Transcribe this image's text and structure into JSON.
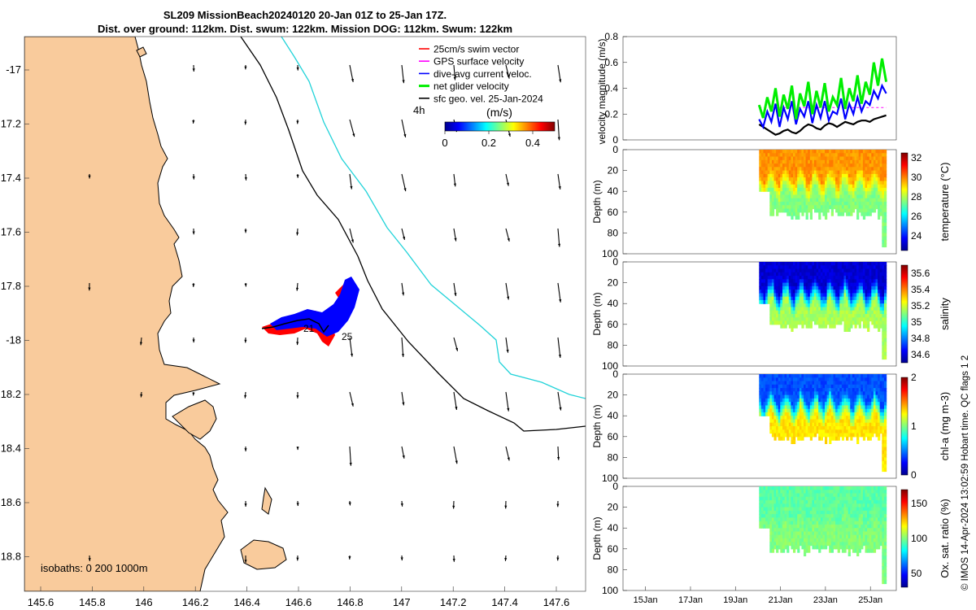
{
  "title": {
    "line1": "SL209 MissionBeach20240120 20-Jan 01Z to 25-Jan 17Z.",
    "line2": "Dist. over ground: 112km. Dist. swum: 122km. Mission DOG: 112km. Swum: 122km"
  },
  "credit": "© IMOS 14-Apr-2024 13:02:59 Hobart time. QC flags 1  2",
  "colors": {
    "land": "#f9cb9c",
    "swim_vector": "#ff0000",
    "gps_velocity": "#ff00ff",
    "dive_avg": "#0000ff",
    "net_glider": "#00ee00",
    "sfc_geo": "#000000",
    "isobath_200": "#000000",
    "isobath_1000": "#22d3d9"
  },
  "map": {
    "lon_ticks": [
      "145.6",
      "145.8",
      "146",
      "146.2",
      "146.4",
      "146.6",
      "146.8",
      "147",
      "147.2",
      "147.4",
      "147.6"
    ],
    "lat_ticks": [
      "-17",
      "17.2",
      "17.4",
      "17.6",
      "17.8",
      "-18",
      "18.2",
      "18.4",
      "18.6",
      "18.8"
    ],
    "isobaths_label": "isobaths: 0   200  1000m",
    "track_labels": {
      "start": "21",
      "end": "25"
    },
    "timestep_label": "4h",
    "legend": [
      {
        "label": "25cm/s swim vector",
        "color": "#ff0000"
      },
      {
        "label": "GPS surface velocity",
        "color": "#ff00ff"
      },
      {
        "label": "dive-avg current veloc.",
        "color": "#0000ff"
      },
      {
        "label": "net glider velocity",
        "color": "#00ee00"
      },
      {
        "label": "sfc geo. vel. 25-Jan-2024",
        "color": "#000000"
      }
    ],
    "colorbar": {
      "unit": "(m/s)",
      "ticks": [
        "0",
        "0.2",
        "0.4"
      ],
      "range": [
        0,
        0.5
      ]
    }
  },
  "chart_data": [
    {
      "type": "line",
      "ylabel": "velocity magnitude (m/s)",
      "ylim": [
        0,
        0.8
      ],
      "yticks": [
        "0",
        "0.2",
        "0.4",
        "0.6",
        "0.8"
      ],
      "x_start": "20-Jan",
      "series": [
        {
          "name": "net glider velocity",
          "color": "#00ee00",
          "values": [
            0.27,
            0.17,
            0.33,
            0.22,
            0.4,
            0.18,
            0.35,
            0.24,
            0.42,
            0.16,
            0.36,
            0.26,
            0.45,
            0.2,
            0.38,
            0.25,
            0.44,
            0.22,
            0.33,
            0.27,
            0.48,
            0.24,
            0.4,
            0.3,
            0.5,
            0.28,
            0.45,
            0.35,
            0.6,
            0.42,
            0.63,
            0.45
          ]
        },
        {
          "name": "dive-avg current veloc.",
          "color": "#0000ff",
          "values": [
            0.16,
            0.1,
            0.22,
            0.14,
            0.28,
            0.1,
            0.25,
            0.16,
            0.3,
            0.12,
            0.24,
            0.18,
            0.3,
            0.13,
            0.27,
            0.17,
            0.3,
            0.15,
            0.22,
            0.2,
            0.32,
            0.16,
            0.28,
            0.2,
            0.33,
            0.22,
            0.3,
            0.27,
            0.38,
            0.32,
            0.42,
            0.36
          ]
        },
        {
          "name": "sfc geo. vel.",
          "color": "#000000",
          "values": [
            0.12,
            0.1,
            0.08,
            0.06,
            0.04,
            0.05,
            0.07,
            0.08,
            0.06,
            0.05,
            0.07,
            0.1,
            0.12,
            0.11,
            0.09,
            0.08,
            0.11,
            0.13,
            0.12,
            0.1,
            0.12,
            0.14,
            0.13,
            0.12,
            0.14,
            0.15,
            0.15,
            0.14,
            0.16,
            0.17,
            0.18,
            0.19
          ]
        },
        {
          "name": "GPS surface velocity",
          "color": "#ff00ff",
          "values": [
            0.25,
            0.25,
            0.25,
            0.25,
            0.25,
            0.25,
            0.25,
            0.25,
            0.25,
            0.25,
            0.25,
            0.25,
            0.25,
            0.25,
            0.25,
            0.25,
            0.25,
            0.25,
            0.25,
            0.25,
            0.25,
            0.25,
            0.25,
            0.25,
            0.25,
            0.25,
            0.25,
            0.25,
            0.25,
            0.25,
            0.25,
            0.25
          ]
        }
      ]
    },
    {
      "type": "heatmap",
      "ylabel": "Depth (m)",
      "yticks": [
        "0",
        "20",
        "40",
        "60",
        "80",
        "100"
      ],
      "ylim": [
        100,
        0
      ],
      "colorbar_label": "temperature (°C)",
      "colorbar_ticks": [
        "24",
        "26",
        "28",
        "30",
        "32"
      ],
      "range": [
        22.5,
        32.5
      ],
      "upper_value": 29.8,
      "lower_value": 27.5
    },
    {
      "type": "heatmap",
      "ylabel": "Depth (m)",
      "yticks": [
        "0",
        "20",
        "40",
        "60",
        "80",
        "100"
      ],
      "ylim": [
        100,
        0
      ],
      "colorbar_label": "salinity",
      "colorbar_ticks": [
        "34.6",
        "34.8",
        "35",
        "35.2",
        "35.4",
        "35.6"
      ],
      "range": [
        34.5,
        35.7
      ],
      "upper_value": 34.6,
      "lower_value": 35.15
    },
    {
      "type": "heatmap",
      "ylabel": "Depth (m)",
      "yticks": [
        "0",
        "20",
        "40",
        "60",
        "80",
        "100"
      ],
      "ylim": [
        100,
        0
      ],
      "colorbar_label": "chl-a (mg m-3)",
      "colorbar_ticks": [
        "0",
        "1",
        "2"
      ],
      "range": [
        0,
        2
      ],
      "upper_value": 0.4,
      "lower_value": 1.3
    },
    {
      "type": "heatmap",
      "ylabel": "Depth (m)",
      "yticks": [
        "0",
        "20",
        "40",
        "60",
        "80",
        "100"
      ],
      "ylim": [
        100,
        0
      ],
      "colorbar_label": "Ox. sat. ratio (%)",
      "colorbar_ticks": [
        "50",
        "100",
        "150"
      ],
      "range": [
        30,
        170
      ],
      "upper_value": 95,
      "lower_value": 100
    }
  ],
  "time_axis": {
    "ticks": [
      "15Jan",
      "17Jan",
      "19Jan",
      "21Jan",
      "23Jan",
      "25Jan"
    ]
  }
}
